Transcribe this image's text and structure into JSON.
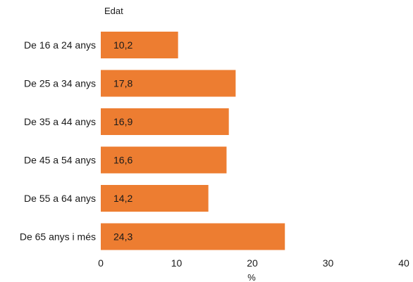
{
  "chart_data": {
    "type": "bar",
    "orientation": "horizontal",
    "title": "Edat",
    "xlabel": "%",
    "ylabel": "",
    "categories": [
      "De 16 a 24 anys",
      "De 25 a 34 anys",
      "De 35 a 44 anys",
      "De 45 a 54 anys",
      "De 55 a 64 anys",
      "De 65 anys i més"
    ],
    "values": [
      10.2,
      17.8,
      16.9,
      16.6,
      14.2,
      24.3
    ],
    "data_labels": [
      "10,2",
      "17,8",
      "16,9",
      "16,6",
      "14,2",
      "24,3"
    ],
    "xlim": [
      0,
      40
    ],
    "xticks": [
      0,
      10,
      20,
      30,
      40
    ],
    "xtick_labels": [
      "0",
      "10",
      "20",
      "30",
      "40"
    ],
    "grid": false,
    "legend": "none",
    "bar_color": "#ED7D31"
  }
}
